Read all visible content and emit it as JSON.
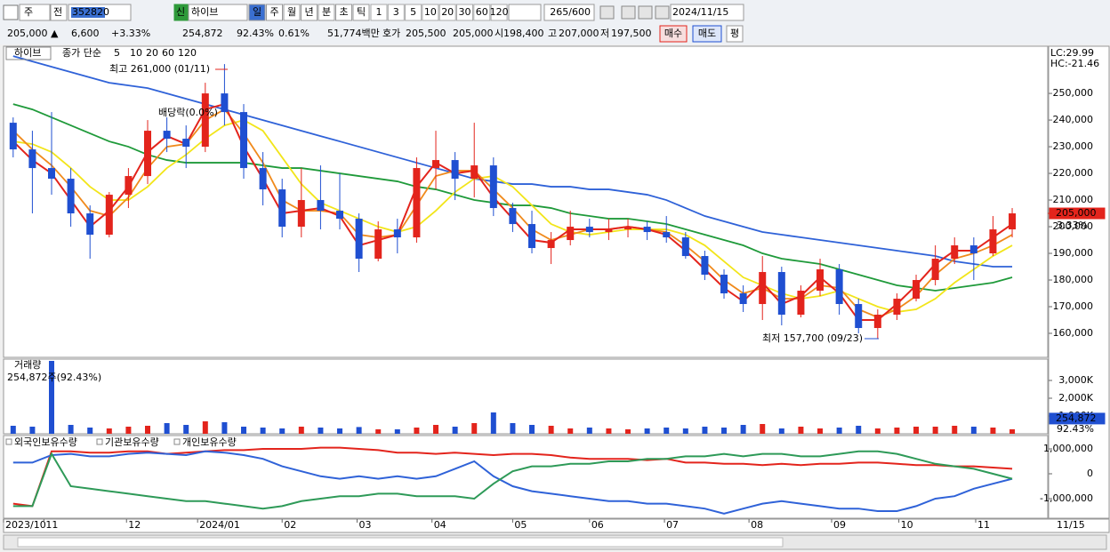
{
  "toolbar": {
    "period_type": "주",
    "scope": "전",
    "code": "352820",
    "badge": "신",
    "name": "하이브",
    "intervals": [
      "일",
      "주",
      "월",
      "년",
      "분",
      "초",
      "틱"
    ],
    "ticks": [
      "1",
      "3",
      "5",
      "10",
      "20",
      "30",
      "60",
      "120"
    ],
    "count": "265/600",
    "date": "2024/11/15"
  },
  "quote": {
    "price": "205,000 ▲",
    "change": "6,600",
    "change_rate": "+3.33%",
    "volume": "254,872",
    "volume_rate": "92.43%",
    "turnover": "0.61%",
    "amount": "51,774백만",
    "ask_label": "호가",
    "ask": "205,500",
    "bid": "205,000",
    "open_label": "시",
    "open": "198,400",
    "high_label": "고",
    "high": "207,000",
    "low_label": "저",
    "low": "197,500",
    "buy": "매수",
    "sell": "매도",
    "avg": "평"
  },
  "chart_data": [
    {
      "type": "candlestick",
      "title": "하이브",
      "subtitle": "종가 단순",
      "up_color": "#e3241c",
      "down_color": "#1f4fd1",
      "x": [
        0,
        1,
        2,
        3,
        4,
        5,
        6,
        7,
        8,
        9,
        10,
        11,
        12,
        13,
        14,
        15,
        16,
        17,
        18,
        19,
        20,
        21,
        22,
        23,
        24,
        25,
        26,
        27,
        28,
        29,
        30,
        31,
        32,
        33,
        34,
        35,
        36,
        37,
        38,
        39,
        40,
        41,
        42,
        43,
        44,
        45,
        46,
        47,
        48,
        49,
        50,
        51,
        52
      ],
      "xlim": [
        -0.5,
        53.85
      ],
      "ylim": [
        151000,
        267700
      ],
      "yticks": [
        {
          "value": 160000,
          "label": "160,000"
        },
        {
          "value": 170000,
          "label": "170,000"
        },
        {
          "value": 180000,
          "label": "180,000"
        },
        {
          "value": 190000,
          "label": "190,000"
        },
        {
          "value": 200000,
          "label": "200,000"
        },
        {
          "value": 210000,
          "label": "210,000"
        },
        {
          "value": 220000,
          "label": "220,000"
        },
        {
          "value": 230000,
          "label": "230,000"
        },
        {
          "value": 240000,
          "label": "240,000"
        },
        {
          "value": 250000,
          "label": "250,000"
        }
      ],
      "open": [
        239000,
        229000,
        222000,
        218000,
        205000,
        197000,
        212000,
        219000,
        236000,
        233000,
        230000,
        250000,
        243000,
        222000,
        214000,
        200000,
        210000,
        206000,
        203000,
        188000,
        199000,
        196000,
        222000,
        225000,
        218000,
        223000,
        207000,
        201000,
        192000,
        195000,
        200000,
        198000,
        199000,
        200000,
        198000,
        196000,
        189000,
        182000,
        175000,
        171000,
        183000,
        167000,
        176000,
        184000,
        171000,
        162000,
        167000,
        173000,
        180000,
        188000,
        193000,
        190000,
        199000
      ],
      "high": [
        241000,
        236000,
        243000,
        222000,
        208000,
        213000,
        222000,
        240000,
        241000,
        238000,
        254000,
        261000,
        246000,
        228000,
        218000,
        222000,
        223000,
        220000,
        205000,
        202000,
        203000,
        226000,
        236000,
        228000,
        239000,
        226000,
        209000,
        206000,
        198000,
        206000,
        203000,
        203000,
        203000,
        202000,
        204000,
        198000,
        191000,
        184000,
        178000,
        189000,
        185000,
        178000,
        188000,
        186000,
        173000,
        169000,
        175000,
        182000,
        193000,
        196000,
        196000,
        204000,
        207000
      ],
      "low": [
        226000,
        205000,
        212000,
        200000,
        188000,
        196000,
        207000,
        216000,
        228000,
        222000,
        228000,
        238000,
        218000,
        208000,
        196000,
        196000,
        199000,
        199000,
        183000,
        187000,
        190000,
        194000,
        214000,
        210000,
        211000,
        204000,
        198000,
        190000,
        186000,
        193000,
        196000,
        195000,
        196000,
        195000,
        194000,
        188000,
        180000,
        173000,
        168000,
        165000,
        163000,
        166000,
        174000,
        167000,
        160000,
        158000,
        165000,
        172000,
        178000,
        186000,
        180000,
        189000,
        196000
      ],
      "close": [
        229000,
        222000,
        218000,
        205000,
        197000,
        212000,
        219000,
        236000,
        233000,
        230000,
        250000,
        243000,
        222000,
        214000,
        200000,
        210000,
        206000,
        203000,
        188000,
        199000,
        196000,
        222000,
        225000,
        218000,
        223000,
        207000,
        201000,
        192000,
        195000,
        200000,
        198000,
        199000,
        200000,
        198000,
        196000,
        189000,
        182000,
        175000,
        171000,
        183000,
        167000,
        176000,
        184000,
        171000,
        162000,
        167000,
        173000,
        180000,
        188000,
        193000,
        190000,
        199000,
        205000
      ],
      "series": [
        {
          "name": "5",
          "color": "#e3241c",
          "values": [
            232000,
            225000,
            220000,
            210000,
            200000,
            206000,
            215000,
            228000,
            234000,
            231000,
            244000,
            246000,
            230000,
            218000,
            205000,
            206000,
            207000,
            204000,
            193000,
            195000,
            197000,
            215000,
            224000,
            220000,
            221000,
            211000,
            203000,
            195000,
            194000,
            199000,
            199000,
            199000,
            200000,
            199000,
            197000,
            191000,
            184000,
            177000,
            172000,
            179000,
            171000,
            174000,
            181000,
            175000,
            165000,
            165000,
            171000,
            178000,
            186000,
            191000,
            191000,
            196000,
            201000
          ]
        },
        {
          "name": "10",
          "color": "#f08a1c",
          "values": [
            236000,
            229000,
            223000,
            215000,
            206000,
            204000,
            211000,
            222000,
            230000,
            231000,
            240000,
            244000,
            235000,
            224000,
            210000,
            206000,
            206000,
            205000,
            197000,
            196000,
            197000,
            208000,
            219000,
            221000,
            221000,
            214000,
            207000,
            199000,
            195000,
            197000,
            199000,
            199000,
            200000,
            199000,
            198000,
            193000,
            187000,
            180000,
            175000,
            177000,
            173000,
            173000,
            178000,
            177000,
            169000,
            166000,
            169000,
            174000,
            182000,
            188000,
            190000,
            193000,
            197000
          ]
        },
        {
          "name": "20",
          "color": "#f2e51a",
          "values": [
            232000,
            231000,
            228000,
            222000,
            215000,
            210000,
            210000,
            215000,
            222000,
            227000,
            233000,
            238000,
            240000,
            236000,
            226000,
            216000,
            209000,
            206000,
            203000,
            200000,
            198000,
            200000,
            206000,
            213000,
            218000,
            219000,
            215000,
            208000,
            201000,
            198000,
            197000,
            198000,
            199000,
            199000,
            199000,
            197000,
            193000,
            187000,
            181000,
            178000,
            175000,
            173000,
            174000,
            176000,
            173000,
            170000,
            168000,
            169000,
            173000,
            179000,
            184000,
            189000,
            193000
          ]
        },
        {
          "name": "60",
          "color": "#1f9a3a",
          "values": [
            246000,
            244000,
            241000,
            238000,
            235000,
            232000,
            230000,
            227000,
            225000,
            224000,
            224000,
            224000,
            224000,
            223000,
            222000,
            222000,
            221000,
            220000,
            219000,
            218000,
            217000,
            215000,
            214000,
            212000,
            210000,
            209000,
            208000,
            208000,
            207000,
            205000,
            204000,
            203000,
            203000,
            202000,
            201000,
            199000,
            197000,
            195000,
            193000,
            190000,
            188000,
            187000,
            186000,
            184000,
            182000,
            180000,
            178000,
            177000,
            176000,
            177000,
            178000,
            179000,
            181000
          ]
        },
        {
          "name": "120",
          "color": "#2f62d8",
          "values": [
            264000,
            262000,
            260000,
            258000,
            256000,
            254000,
            253000,
            252000,
            250000,
            248000,
            246000,
            244000,
            242000,
            240000,
            238000,
            236000,
            234000,
            232000,
            230000,
            228000,
            226000,
            224000,
            222000,
            220000,
            218000,
            217000,
            216000,
            216000,
            215000,
            215000,
            214000,
            214000,
            213000,
            212000,
            210000,
            207000,
            204000,
            202000,
            200000,
            198000,
            197000,
            196000,
            195000,
            194000,
            193000,
            192000,
            191000,
            190000,
            189000,
            187000,
            186000,
            185000,
            185000
          ]
        }
      ],
      "annotations": {
        "high": "최고 261,000 (01/11)",
        "low": "최저 157,700 (09/23)",
        "dividend": "배당락(0.0%)"
      },
      "lc": "LC:29.99",
      "hc": "HC:-21.46",
      "last_price": {
        "value": 205000,
        "label": "205,000"
      },
      "last_change": {
        "value": 3.33,
        "label": "3.33%"
      }
    },
    {
      "type": "bar",
      "title": "거래량",
      "subtitle": "254,872주(92.43%)",
      "xlim": [
        -0.5,
        53.85
      ],
      "ylim": [
        0,
        4200000
      ],
      "yticks": [
        {
          "value": 1000000,
          "label": "1,000K"
        },
        {
          "value": 2000000,
          "label": "2,000K"
        },
        {
          "value": 3000000,
          "label": "3,000K"
        }
      ],
      "values": [
        450000,
        400000,
        4100000,
        500000,
        350000,
        300000,
        400000,
        450000,
        600000,
        500000,
        700000,
        650000,
        400000,
        350000,
        300000,
        400000,
        350000,
        300000,
        380000,
        250000,
        250000,
        350000,
        500000,
        400000,
        600000,
        1200000,
        600000,
        500000,
        450000,
        300000,
        350000,
        300000,
        250000,
        300000,
        350000,
        300000,
        400000,
        350000,
        500000,
        550000,
        300000,
        400000,
        300000,
        350000,
        450000,
        300000,
        350000,
        400000,
        400000,
        450000,
        400000,
        350000,
        254872
      ],
      "last_volume": {
        "value": 254872,
        "label": "254,872"
      },
      "last_rate": "92.43%"
    },
    {
      "type": "line",
      "xlim": [
        -0.5,
        53.85
      ],
      "ylim": [
        -1786000,
        1536000
      ],
      "yticks": [
        {
          "value": 1000000,
          "label": "1,000,000"
        },
        0,
        {
          "value": -1000000,
          "label": "-1,000,000"
        }
      ],
      "xticks": [
        {
          "value": -0.5,
          "label": "2023/10"
        },
        {
          "value": 1.6,
          "label": "11"
        },
        {
          "value": 5.9,
          "label": "12"
        },
        {
          "value": 9.6,
          "label": "2024/01"
        },
        {
          "value": 14.0,
          "label": "02"
        },
        {
          "value": 17.9,
          "label": "03"
        },
        {
          "value": 21.8,
          "label": "04"
        },
        {
          "value": 26.0,
          "label": "05"
        },
        {
          "value": 30.0,
          "label": "06"
        },
        {
          "value": 33.9,
          "label": "07"
        },
        {
          "value": 38.3,
          "label": "08"
        },
        {
          "value": 42.6,
          "label": "09"
        },
        {
          "value": 46.1,
          "label": "10"
        },
        {
          "value": 50.1,
          "label": "11"
        }
      ],
      "x_end_label": "11/15",
      "series": [
        {
          "name": "외국인보유수량",
          "color": "#e3241c",
          "values": [
            -1200000,
            -1300000,
            900000,
            900000,
            850000,
            850000,
            900000,
            900000,
            800000,
            850000,
            900000,
            950000,
            950000,
            1000000,
            1000000,
            1000000,
            1050000,
            1050000,
            1000000,
            950000,
            850000,
            850000,
            800000,
            850000,
            800000,
            750000,
            800000,
            800000,
            750000,
            650000,
            600000,
            600000,
            600000,
            550000,
            600000,
            450000,
            450000,
            400000,
            400000,
            350000,
            400000,
            350000,
            400000,
            400000,
            450000,
            450000,
            400000,
            350000,
            350000,
            300000,
            300000,
            250000,
            200000
          ]
        },
        {
          "name": "기관보유수량",
          "color": "#2f62d8",
          "values": [
            450000,
            450000,
            750000,
            800000,
            700000,
            700000,
            800000,
            850000,
            800000,
            750000,
            900000,
            850000,
            750000,
            600000,
            300000,
            100000,
            -100000,
            -200000,
            -100000,
            -200000,
            -100000,
            -200000,
            -100000,
            200000,
            500000,
            -100000,
            -500000,
            -700000,
            -800000,
            -900000,
            -1000000,
            -1100000,
            -1100000,
            -1200000,
            -1200000,
            -1300000,
            -1400000,
            -1600000,
            -1400000,
            -1200000,
            -1100000,
            -1200000,
            -1300000,
            -1400000,
            -1400000,
            -1500000,
            -1500000,
            -1300000,
            -1000000,
            -900000,
            -600000,
            -400000,
            -200000
          ]
        },
        {
          "name": "개인보유수량",
          "color": "#2e9a58",
          "values": [
            -1300000,
            -1300000,
            800000,
            -500000,
            -600000,
            -700000,
            -800000,
            -900000,
            -1000000,
            -1100000,
            -1100000,
            -1200000,
            -1300000,
            -1400000,
            -1300000,
            -1100000,
            -1000000,
            -900000,
            -900000,
            -800000,
            -800000,
            -900000,
            -900000,
            -900000,
            -1000000,
            -400000,
            100000,
            300000,
            300000,
            400000,
            400000,
            500000,
            500000,
            600000,
            600000,
            700000,
            700000,
            800000,
            700000,
            800000,
            800000,
            700000,
            700000,
            800000,
            900000,
            900000,
            800000,
            600000,
            400000,
            300000,
            200000,
            0,
            -200000
          ]
        }
      ]
    }
  ]
}
